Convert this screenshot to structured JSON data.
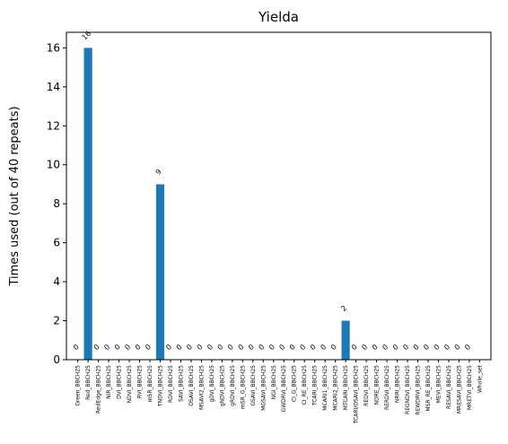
{
  "chart_data": {
    "type": "bar",
    "title": "Yielda",
    "xlabel": "",
    "ylabel": "Times used (out of 40 repeats)",
    "ylim": [
      0,
      16.8
    ],
    "yticks": [
      0,
      2,
      4,
      6,
      8,
      10,
      12,
      14,
      16
    ],
    "grid": false,
    "bar_color": "#1f77b4",
    "categories": [
      "Green_BBCH25",
      "Red_BBCH25",
      "RedEdge_BBCH25",
      "NIR_BBCH25",
      "DVI_BBCH25",
      "NDVI_BBCH25",
      "RVI_BBCH25",
      "mSR_BBCH25",
      "TNDVI_BBCH25",
      "RDVI_BBCH25",
      "SAVI_BBCH25",
      "OSAVI_BBCH25",
      "MSAVI2_BBCH25",
      "gDVI_BBCH25",
      "gNDVI_BBCH25",
      "gRDVI_BBCH25",
      "mSR_G_BBCH25",
      "GSAVI_BBCH25",
      "MGSAVI_BBCH25",
      "NGI_BBCH25",
      "GWDRVI_BBCH25",
      "CI_G_BBCH25",
      "CI_RE_BBCH25",
      "TCARI_BBCH25",
      "MCARI1_BBCH25",
      "MCARI2_BBCH25",
      "MTCARI_BBCH25",
      "TCARI/OSAVI_BBCH25",
      "REDVI_BBCH25",
      "NDRE_BBCH25",
      "RERDVI_BBCH25",
      "NRRI_BBCH25",
      "REGNDVI_BBCH25",
      "REWDRVI_BBCH25",
      "MSR_RE_BBCH25",
      "MEVI_BBCH25",
      "RESAVI_BBCH25",
      "MRESAVI_BBCH25",
      "MRETVI_BBCH25",
      "Whole_set"
    ],
    "values": [
      0,
      16,
      0,
      0,
      0,
      0,
      0,
      0,
      9,
      0,
      0,
      0,
      0,
      0,
      0,
      0,
      0,
      0,
      0,
      0,
      0,
      0,
      0,
      0,
      0,
      0,
      2,
      0,
      0,
      0,
      0,
      0,
      0,
      0,
      0,
      0,
      0,
      0,
      0,
      0
    ],
    "data_labels": [
      "0",
      "16",
      "0",
      "0",
      "0",
      "0",
      "0",
      "0",
      "9",
      "0",
      "0",
      "0",
      "0",
      "0",
      "0",
      "0",
      "0",
      "0",
      "0",
      "0",
      "0",
      "0",
      "0",
      "0",
      "0",
      "0",
      "2",
      "0",
      "0",
      "0",
      "0",
      "0",
      "0",
      "0",
      "0",
      "0",
      "0",
      "0",
      "0",
      ""
    ]
  }
}
